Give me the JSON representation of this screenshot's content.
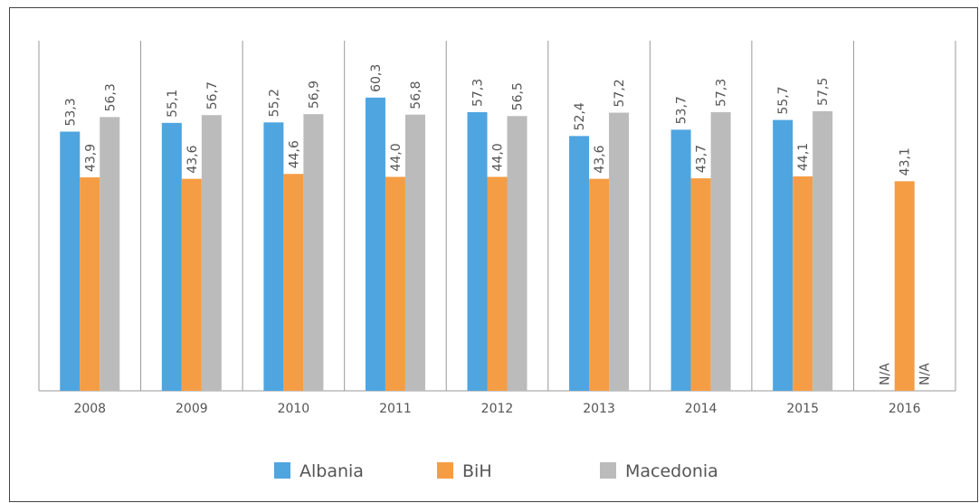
{
  "chart_data": {
    "type": "bar",
    "categories": [
      "2008",
      "2009",
      "2010",
      "2011",
      "2012",
      "2013",
      "2014",
      "2015",
      "2016"
    ],
    "series": [
      {
        "name": "Albania",
        "color": "#4ea5e0",
        "values": [
          53.3,
          55.1,
          55.2,
          60.3,
          57.3,
          52.4,
          53.7,
          55.7,
          null
        ],
        "value_labels": [
          "53,3",
          "55,1",
          "55,2",
          "60,3",
          "57,3",
          "52,4",
          "53,7",
          "55,7",
          "N/A"
        ]
      },
      {
        "name": "BiH",
        "color": "#f59d45",
        "values": [
          43.9,
          43.6,
          44.6,
          44.0,
          44.0,
          43.6,
          43.7,
          44.1,
          43.1
        ],
        "value_labels": [
          "43,9",
          "43,6",
          "44,6",
          "44,0",
          "44,0",
          "43,6",
          "43,7",
          "44,1",
          "43,1"
        ]
      },
      {
        "name": "Macedonia",
        "color": "#bbbbbb",
        "values": [
          56.3,
          56.7,
          56.9,
          56.8,
          56.5,
          57.2,
          57.3,
          57.5,
          null
        ],
        "value_labels": [
          "56,3",
          "56,7",
          "56,9",
          "56,8",
          "56,5",
          "57,2",
          "57,3",
          "57,5",
          "N/A"
        ]
      }
    ],
    "ylim": [
      0,
      72
    ],
    "legend": "bottom"
  }
}
